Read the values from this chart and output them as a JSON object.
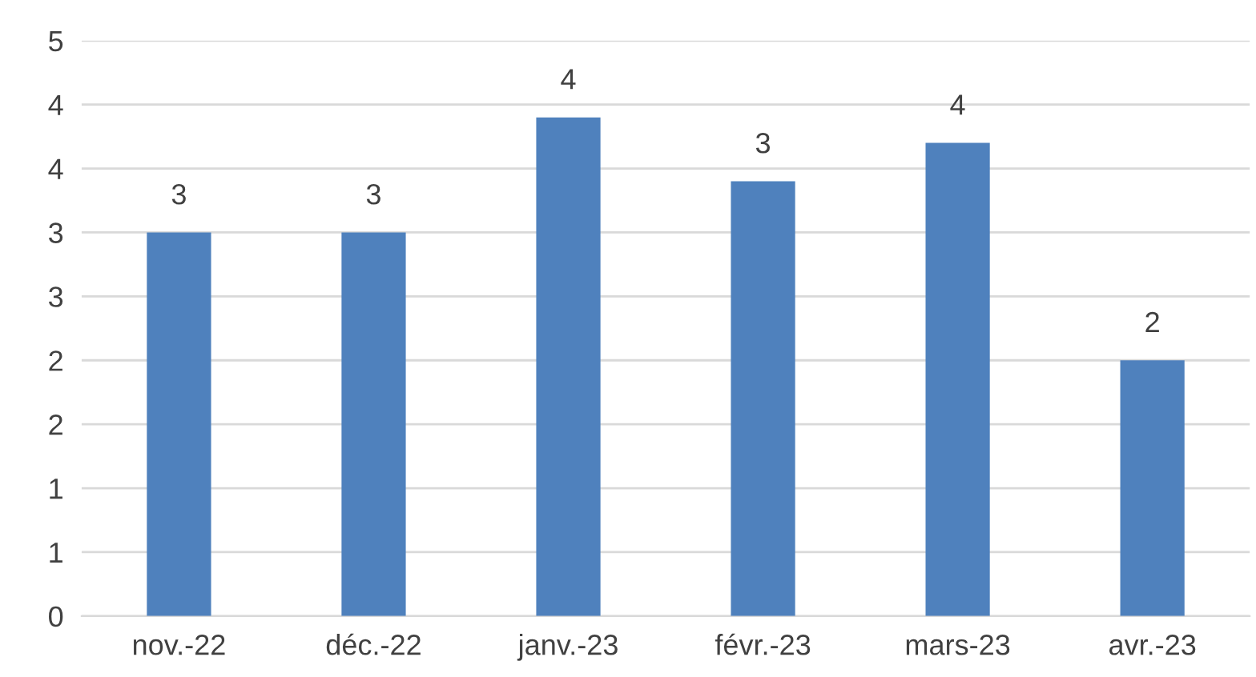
{
  "chart_data": {
    "type": "bar",
    "categories": [
      "nov.-22",
      "déc.-22",
      "janv.-23",
      "févr.-23",
      "mars-23",
      "avr.-23"
    ],
    "values": [
      3.0,
      3.0,
      3.9,
      3.4,
      3.7,
      2.0
    ],
    "value_labels": [
      "3",
      "3",
      "4",
      "3",
      "4",
      "2"
    ],
    "color": "#4f81bd",
    "ylim": [
      0,
      4.5
    ],
    "yticks": [
      0,
      {
        "value": 0.5,
        "label": "1"
      },
      1,
      {
        "value": 1.5,
        "label": "2"
      },
      2,
      {
        "value": 2.5,
        "label": "3"
      },
      3,
      {
        "value": 3.5,
        "label": "4"
      },
      4,
      {
        "value": 4.5,
        "label": "5"
      }
    ],
    "grid": "y"
  }
}
